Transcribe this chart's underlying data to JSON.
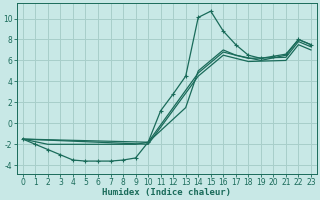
{
  "xlabel": "Humidex (Indice chaleur)",
  "xlim": [
    -0.5,
    23.5
  ],
  "ylim": [
    -4.8,
    11.5
  ],
  "xticks": [
    0,
    1,
    2,
    3,
    4,
    5,
    6,
    7,
    8,
    9,
    10,
    11,
    12,
    13,
    14,
    15,
    16,
    17,
    18,
    19,
    20,
    21,
    22,
    23
  ],
  "yticks": [
    -4,
    -2,
    0,
    2,
    4,
    6,
    8,
    10
  ],
  "bg_color": "#c8e8e6",
  "grid_color": "#a8ceca",
  "line_color": "#1a6b5a",
  "curve1_x": [
    0,
    1,
    2,
    3,
    4,
    5,
    6,
    7,
    8,
    9,
    10,
    11,
    12,
    13,
    14,
    15,
    16,
    17,
    18,
    19,
    20,
    21,
    22,
    23
  ],
  "curve1_y": [
    -1.5,
    -2.0,
    -2.5,
    -3.0,
    -3.5,
    -3.6,
    -3.6,
    -3.6,
    -3.5,
    -3.3,
    -1.8,
    1.2,
    2.8,
    4.5,
    10.1,
    10.7,
    8.8,
    7.5,
    6.5,
    6.2,
    6.4,
    6.6,
    8.0,
    7.5
  ],
  "curve2_x": [
    0,
    2,
    9,
    10,
    13,
    14,
    16,
    17,
    19,
    21,
    22,
    23
  ],
  "curve2_y": [
    -1.5,
    -2.0,
    -2.0,
    -1.8,
    1.5,
    5.0,
    7.0,
    6.5,
    6.0,
    6.5,
    8.0,
    7.5
  ],
  "curve3_x": [
    0,
    10,
    14,
    16,
    18,
    21,
    22,
    23
  ],
  "curve3_y": [
    -1.5,
    -1.8,
    4.8,
    6.8,
    6.2,
    6.3,
    7.8,
    7.3
  ],
  "curve4_x": [
    0,
    10,
    14,
    16,
    18,
    21,
    22,
    23
  ],
  "curve4_y": [
    -1.5,
    -2.0,
    4.5,
    6.5,
    5.9,
    6.0,
    7.5,
    7.0
  ]
}
